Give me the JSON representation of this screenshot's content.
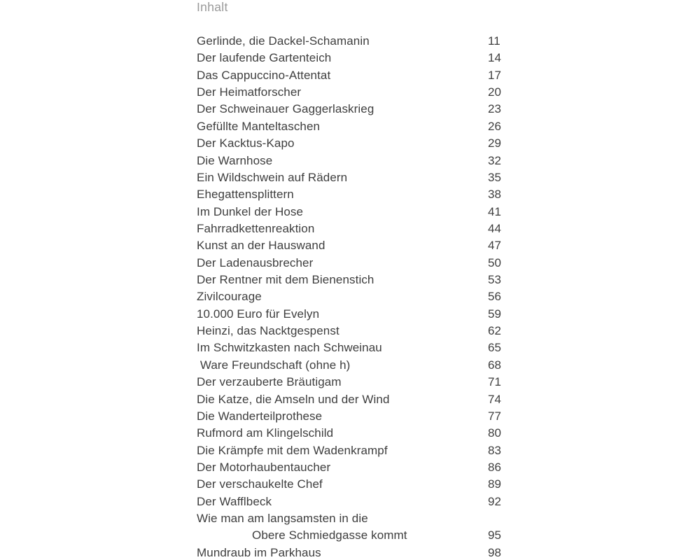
{
  "toc": {
    "heading": "Inhalt",
    "text_color": "#3e3e3e",
    "heading_color": "#9a9a9a",
    "entries": [
      {
        "title": "Gerlinde, die Dackel-Schamanin",
        "page": "11"
      },
      {
        "title": "Der laufende Gartenteich",
        "page": "14"
      },
      {
        "title": "Das Cappuccino-Attentat",
        "page": "17"
      },
      {
        "title": "Der Heimatforscher",
        "page": "20"
      },
      {
        "title": "Der Schweinauer Gaggerlaskrieg",
        "page": "23"
      },
      {
        "title": "Gefüllte Manteltaschen",
        "page": "26"
      },
      {
        "title": "Der Kacktus-Kapo",
        "page": "29"
      },
      {
        "title": "Die Warnhose",
        "page": "32"
      },
      {
        "title": "Ein Wildschwein auf Rädern",
        "page": "35"
      },
      {
        "title": "Ehegattensplittern",
        "page": "38"
      },
      {
        "title": "Im Dunkel der Hose",
        "page": "41"
      },
      {
        "title": "Fahrradkettenreaktion",
        "page": "44"
      },
      {
        "title": "Kunst an der Hauswand",
        "page": "47"
      },
      {
        "title": "Der Ladenausbrecher",
        "page": "50"
      },
      {
        "title": "Der Rentner mit dem Bienenstich",
        "page": "53"
      },
      {
        "title": "Zivilcourage",
        "page": "56"
      },
      {
        "title": "10.000 Euro für Evelyn",
        "page": "59"
      },
      {
        "title": "Heinzi, das Nacktgespenst",
        "page": "62"
      },
      {
        "title": "Im Schwitzkasten nach Schweinau",
        "page": "65"
      },
      {
        "title": " Ware Freundschaft (ohne h)",
        "page": "68"
      },
      {
        "title": "Der verzauberte Bräutigam",
        "page": "71"
      },
      {
        "title": "Die Katze, die Amseln und der Wind",
        "page": "74"
      },
      {
        "title": "Die Wanderteilprothese",
        "page": "77"
      },
      {
        "title": "Rufmord am Klingelschild",
        "page": "80"
      },
      {
        "title": "Die Krämpfe mit dem Wadenkrampf",
        "page": "83"
      },
      {
        "title": "Der Motorhaubentaucher",
        "page": "86"
      },
      {
        "title": "Der verschaukelte Chef",
        "page": "89"
      },
      {
        "title": "Der Wafflbeck",
        "page": "92"
      },
      {
        "title": "Wie man am langsamsten in die",
        "title_continuation": "Obere Schmiedgasse kommt",
        "page": "95"
      },
      {
        "title": "Mundraub im Parkhaus",
        "page": "98"
      }
    ]
  }
}
